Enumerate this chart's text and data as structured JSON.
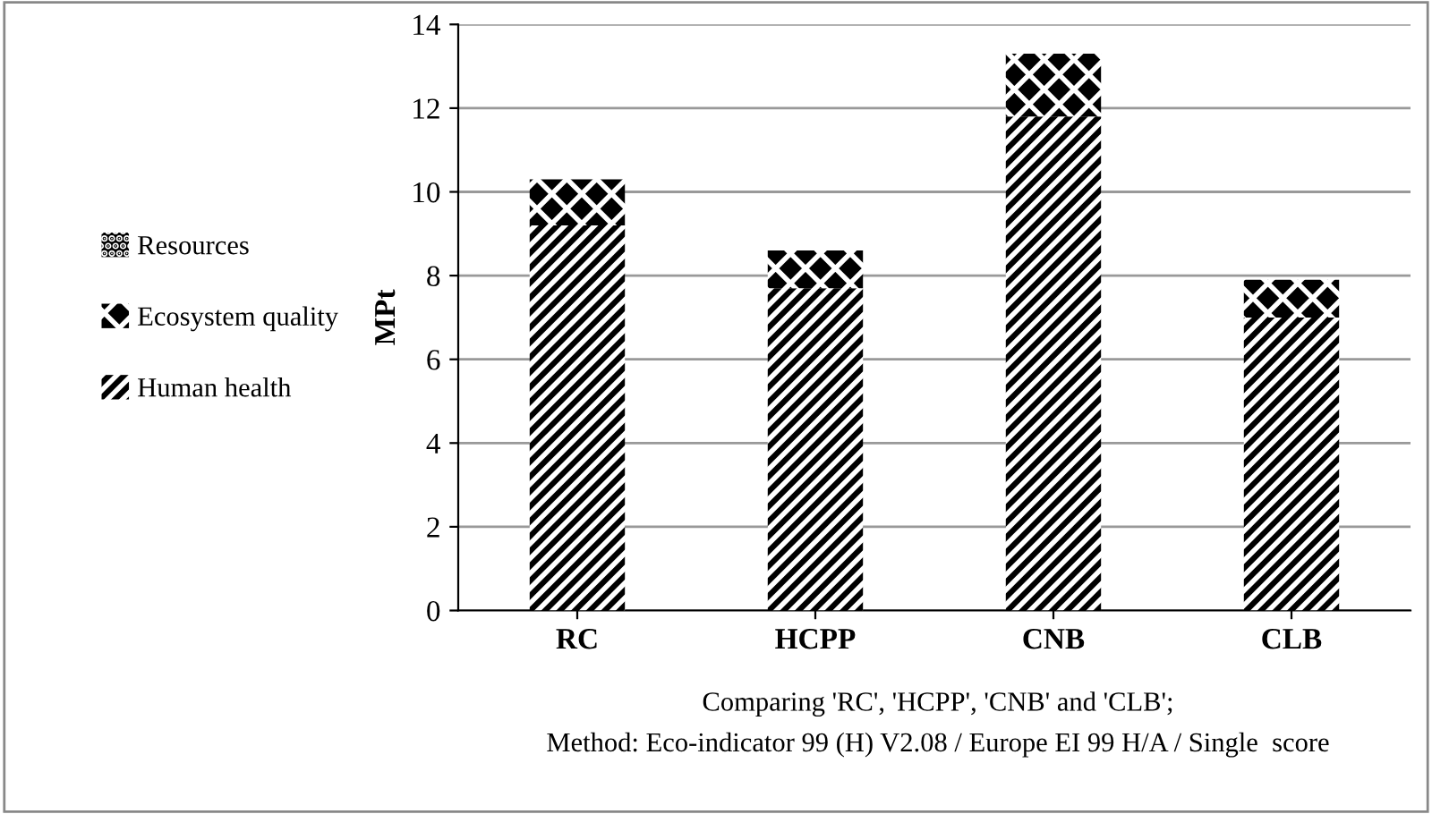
{
  "chart_data": {
    "type": "bar",
    "stacked": true,
    "ylabel": "MPt",
    "categories": [
      "RC",
      "HCPP",
      "CNB",
      "CLB"
    ],
    "series": [
      {
        "name": "Human health",
        "color": "#000000",
        "values": [
          9.2,
          7.7,
          11.8,
          7.0
        ]
      },
      {
        "name": "Ecosystem quality",
        "color": "#000000",
        "values": [
          1.1,
          0.9,
          1.5,
          0.9
        ]
      },
      {
        "name": "Resources",
        "color": "#000000",
        "values": [
          0,
          0,
          0,
          0
        ]
      }
    ],
    "ylim": [
      0,
      14
    ],
    "yticks": [
      0,
      2,
      4,
      6,
      8,
      10,
      12,
      14
    ],
    "grid": "y",
    "legend": "left",
    "annotations": [
      "Comparing 'RC', 'HCPP', 'CNB' and 'CLB';",
      "Method: Eco-indicator 99 (H) V2.08 / Europe EI 99 H/A / Single  score"
    ]
  }
}
